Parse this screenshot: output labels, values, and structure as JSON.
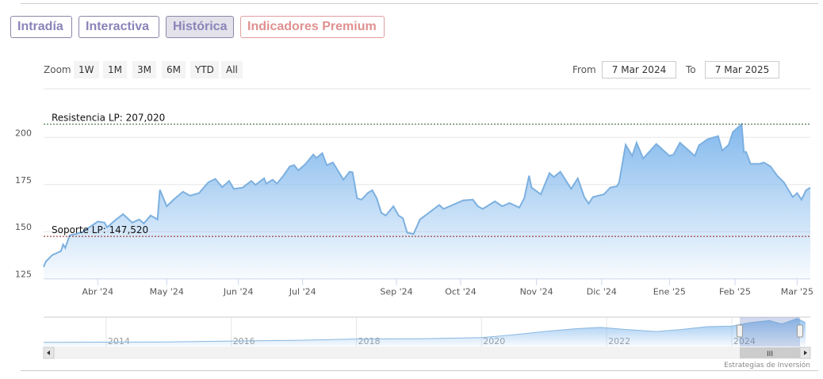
{
  "tabs": [
    {
      "label": "Intradía",
      "active": false
    },
    {
      "label": "Interactiva",
      "active": false
    },
    {
      "label": "Histórica",
      "active": true
    },
    {
      "label": "Indicadores Premium",
      "active": false
    }
  ],
  "range_selector": {
    "zoom_label": "Zoom",
    "buttons": [
      "1W",
      "1M",
      "3M",
      "6M",
      "YTD",
      "All"
    ],
    "from_label": "From",
    "from_value": "7 Mar 2024",
    "to_label": "To",
    "to_value": "7 Mar 2025"
  },
  "colors": {
    "line": "#7cb0e0",
    "fill_top": "#7cb5ec",
    "resistance": "#2e5e2e",
    "support": "#8b1a1a",
    "grid": "#e6e6e6"
  },
  "chart_data": {
    "type": "area",
    "ylim": [
      120,
      210
    ],
    "yticks": [
      125,
      150,
      175,
      200
    ],
    "xticks": [
      {
        "label": "Abr '24",
        "date": "2024-04-01"
      },
      {
        "label": "May '24",
        "date": "2024-05-01"
      },
      {
        "label": "Jun '24",
        "date": "2024-06-01"
      },
      {
        "label": "Jul '24",
        "date": "2024-07-01"
      },
      {
        "label": "Sep '24",
        "date": "2024-09-01"
      },
      {
        "label": "Oct '24",
        "date": "2024-10-01"
      },
      {
        "label": "Nov '24",
        "date": "2024-11-01"
      },
      {
        "label": "Dic '24",
        "date": "2024-12-01"
      },
      {
        "label": "Ene '25",
        "date": "2025-01-01"
      },
      {
        "label": "Feb '25",
        "date": "2025-02-01"
      },
      {
        "label": "Mar '25",
        "date": "2025-03-01"
      }
    ],
    "lines": [
      {
        "label": "Resistencia LP: 207,020",
        "value": 207.02
      },
      {
        "label": "Soporte LP: 147,520",
        "value": 147.52
      }
    ],
    "series": [
      [
        "2024-03-07",
        131.3
      ],
      [
        "2024-03-08",
        134.1
      ],
      [
        "2024-03-11",
        137.6
      ],
      [
        "2024-03-15",
        139.7
      ],
      [
        "2024-03-16",
        143.2
      ],
      [
        "2024-03-17",
        141.4
      ],
      [
        "2024-03-19",
        148.1
      ],
      [
        "2024-03-22",
        148.8
      ],
      [
        "2024-03-25",
        149.9
      ],
      [
        "2024-04-01",
        155.4
      ],
      [
        "2024-04-04",
        154.8
      ],
      [
        "2024-04-05",
        152.3
      ],
      [
        "2024-04-09",
        156.5
      ],
      [
        "2024-04-12",
        159.3
      ],
      [
        "2024-04-16",
        154.8
      ],
      [
        "2024-04-19",
        156.5
      ],
      [
        "2024-04-21",
        154.4
      ],
      [
        "2024-04-24",
        158.6
      ],
      [
        "2024-04-27",
        156.5
      ],
      [
        "2024-04-28",
        172.2
      ],
      [
        "2024-05-01",
        163.5
      ],
      [
        "2024-05-04",
        167.0
      ],
      [
        "2024-05-08",
        171.2
      ],
      [
        "2024-05-11",
        169.1
      ],
      [
        "2024-05-15",
        170.5
      ],
      [
        "2024-05-19",
        176.2
      ],
      [
        "2024-05-22",
        178.0
      ],
      [
        "2024-05-25",
        173.6
      ],
      [
        "2024-05-28",
        176.9
      ],
      [
        "2024-05-30",
        172.7
      ],
      [
        "2024-06-03",
        173.4
      ],
      [
        "2024-06-07",
        176.9
      ],
      [
        "2024-06-09",
        174.8
      ],
      [
        "2024-06-13",
        178.3
      ],
      [
        "2024-06-14",
        175.5
      ],
      [
        "2024-06-17",
        177.6
      ],
      [
        "2024-06-19",
        175.5
      ],
      [
        "2024-06-22",
        179.7
      ],
      [
        "2024-06-25",
        184.6
      ],
      [
        "2024-06-27",
        185.3
      ],
      [
        "2024-06-29",
        182.5
      ],
      [
        "2024-07-03",
        186.0
      ],
      [
        "2024-07-08",
        190.9
      ],
      [
        "2024-07-10",
        189.1
      ],
      [
        "2024-07-14",
        191.6
      ],
      [
        "2024-07-17",
        185.3
      ],
      [
        "2024-07-21",
        186.7
      ],
      [
        "2024-07-28",
        177.6
      ],
      [
        "2024-08-01",
        181.8
      ],
      [
        "2024-08-03",
        181.5
      ],
      [
        "2024-08-06",
        167.7
      ],
      [
        "2024-08-09",
        167.0
      ],
      [
        "2024-08-13",
        170.5
      ],
      [
        "2024-08-16",
        172.0
      ],
      [
        "2024-08-19",
        167.7
      ],
      [
        "2024-08-22",
        160.0
      ],
      [
        "2024-08-25",
        158.6
      ],
      [
        "2024-08-30",
        163.5
      ],
      [
        "2024-09-02",
        158.6
      ],
      [
        "2024-09-04",
        157.2
      ],
      [
        "2024-09-06",
        149.5
      ],
      [
        "2024-09-09",
        148.8
      ],
      [
        "2024-09-12",
        156.5
      ],
      [
        "2024-09-21",
        164.2
      ],
      [
        "2024-09-23",
        162.1
      ],
      [
        "2024-10-02",
        166.6
      ],
      [
        "2024-10-06",
        167.0
      ],
      [
        "2024-10-08",
        163.5
      ],
      [
        "2024-10-10",
        162.1
      ],
      [
        "2024-10-15",
        166.1
      ],
      [
        "2024-10-18",
        163.5
      ],
      [
        "2024-10-21",
        165.2
      ],
      [
        "2024-10-25",
        162.8
      ],
      [
        "2024-10-27",
        167.7
      ],
      [
        "2024-10-29",
        179.7
      ],
      [
        "2024-10-30",
        173.4
      ],
      [
        "2024-11-03",
        169.8
      ],
      [
        "2024-11-07",
        181.1
      ],
      [
        "2024-11-09",
        179.0
      ],
      [
        "2024-11-12",
        181.8
      ],
      [
        "2024-11-17",
        172.7
      ],
      [
        "2024-11-20",
        178.3
      ],
      [
        "2024-11-23",
        168.4
      ],
      [
        "2024-11-25",
        164.9
      ],
      [
        "2024-11-27",
        168.4
      ],
      [
        "2024-12-02",
        169.8
      ],
      [
        "2024-12-05",
        173.4
      ],
      [
        "2024-12-08",
        174.1
      ],
      [
        "2024-12-09",
        176.2
      ],
      [
        "2024-12-12",
        196.1
      ],
      [
        "2024-12-15",
        190.2
      ],
      [
        "2024-12-17",
        197.2
      ],
      [
        "2024-12-20",
        188.8
      ],
      [
        "2024-12-26",
        196.5
      ],
      [
        "2025-01-01",
        190.2
      ],
      [
        "2025-01-03",
        190.9
      ],
      [
        "2025-01-06",
        197.2
      ],
      [
        "2025-01-13",
        190.2
      ],
      [
        "2025-01-15",
        195.8
      ],
      [
        "2025-01-19",
        199.0
      ],
      [
        "2025-01-24",
        200.7
      ],
      [
        "2025-01-26",
        193.0
      ],
      [
        "2025-01-29",
        196.1
      ],
      [
        "2025-01-31",
        202.8
      ],
      [
        "2025-02-02",
        204.9
      ],
      [
        "2025-02-04",
        207.0
      ],
      [
        "2025-02-05",
        192.3
      ],
      [
        "2025-02-06",
        192.3
      ],
      [
        "2025-02-08",
        186.0
      ],
      [
        "2025-02-12",
        186.0
      ],
      [
        "2025-02-14",
        186.7
      ],
      [
        "2025-02-17",
        184.6
      ],
      [
        "2025-02-20",
        179.7
      ],
      [
        "2025-02-23",
        176.2
      ],
      [
        "2025-02-27",
        168.4
      ],
      [
        "2025-03-01",
        170.5
      ],
      [
        "2025-03-03",
        167.0
      ],
      [
        "2025-03-05",
        171.9
      ],
      [
        "2025-03-07",
        173.4
      ]
    ]
  },
  "navigator": {
    "year_labels": [
      "2014",
      "2016",
      "2018",
      "2020",
      "2022",
      "2024"
    ],
    "series": [
      [
        2013.0,
        30
      ],
      [
        2014,
        32
      ],
      [
        2015,
        33
      ],
      [
        2016,
        40
      ],
      [
        2017,
        45
      ],
      [
        2018,
        55
      ],
      [
        2019,
        57
      ],
      [
        2020,
        65
      ],
      [
        2020.5,
        85
      ],
      [
        2021,
        110
      ],
      [
        2021.5,
        130
      ],
      [
        2021.9,
        140
      ],
      [
        2022.3,
        125
      ],
      [
        2022.8,
        110
      ],
      [
        2023.2,
        125
      ],
      [
        2023.6,
        145
      ],
      [
        2024,
        150
      ],
      [
        2024.3,
        175
      ],
      [
        2024.6,
        190
      ],
      [
        2024.8,
        165
      ],
      [
        2025.05,
        205
      ],
      [
        2025.18,
        175
      ]
    ],
    "selected": [
      2024.18,
      2025.18
    ],
    "credit": "Estrategias de Inversión"
  }
}
